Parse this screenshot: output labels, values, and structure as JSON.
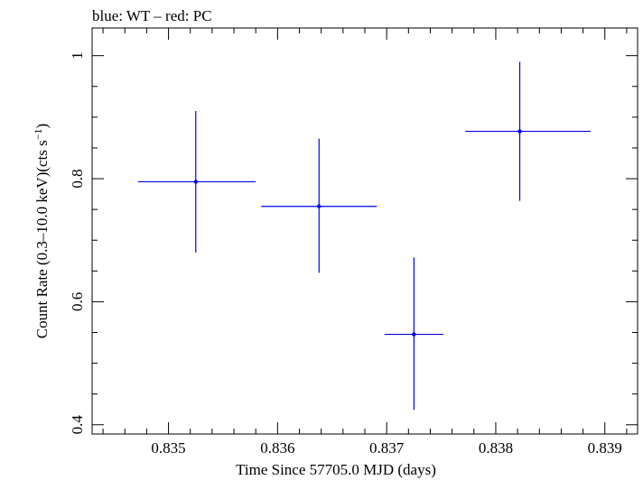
{
  "chart_data": {
    "type": "scatter",
    "title": "blue: WT – red: PC",
    "xlabel": "Time Since 57705.0 MJD (days)",
    "ylabel": "Count Rate (0.3–10.0 keV)(cts s",
    "ylabel_sup": "−1",
    "ylabel_close": ")",
    "xlim": [
      0.8343,
      0.8393
    ],
    "ylim": [
      0.385,
      1.045
    ],
    "x_ticks": [
      0.835,
      0.836,
      0.837,
      0.838,
      0.839
    ],
    "x_tick_labels": [
      "0.835",
      "0.836",
      "0.837",
      "0.838",
      "0.839"
    ],
    "y_ticks": [
      0.4,
      0.6,
      0.8,
      1.0
    ],
    "y_tick_labels": [
      "0.4",
      "0.6",
      "0.8",
      "1"
    ],
    "series": [
      {
        "color": "#0000ee",
        "points": [
          {
            "x": 0.83525,
            "y": 0.795,
            "xerr": [
              0.00053,
              0.00055
            ],
            "yerr": [
              0.115,
              0.115
            ]
          },
          {
            "x": 0.83638,
            "y": 0.755,
            "xerr": [
              0.00053,
              0.00053
            ],
            "yerr": [
              0.108,
              0.11
            ]
          },
          {
            "x": 0.83725,
            "y": 0.547,
            "xerr": [
              0.00027,
              0.00027
            ],
            "yerr": [
              0.123,
              0.125
            ]
          },
          {
            "x": 0.83822,
            "y": 0.877,
            "xerr": [
              0.0005,
              0.00065
            ],
            "yerr": [
              0.113,
              0.113
            ]
          }
        ]
      }
    ]
  }
}
